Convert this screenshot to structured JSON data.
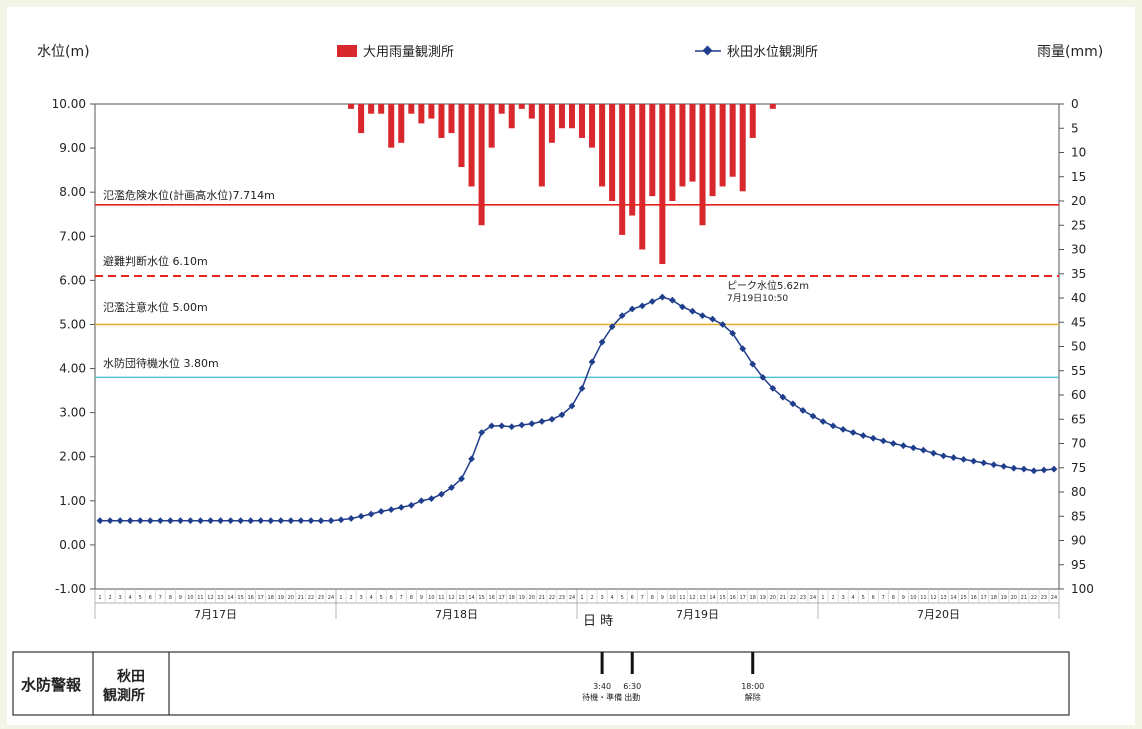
{
  "chart_data": {
    "type": "bar+line",
    "left_axis_label": "水位(m)",
    "right_axis_label": "雨量(mm)",
    "xlabel": "日 時",
    "left_ticks": [
      "10.00",
      "9.00",
      "8.00",
      "7.00",
      "6.00",
      "5.00",
      "4.00",
      "3.00",
      "2.00",
      "1.00",
      "0.00",
      "-1.00"
    ],
    "right_ticks": [
      "0",
      "5",
      "10",
      "15",
      "20",
      "25",
      "30",
      "35",
      "40",
      "45",
      "50",
      "55",
      "60",
      "65",
      "70",
      "75",
      "80",
      "85",
      "90",
      "95",
      "100"
    ],
    "ylim_left": [
      -1,
      10
    ],
    "ylim_right": [
      0,
      100
    ],
    "right_axis_inverted": true,
    "day_labels": [
      "7月17日",
      "7月18日",
      "7月19日",
      "7月20日"
    ],
    "hour_ticks": [
      "1",
      "2",
      "3",
      "4",
      "5",
      "6",
      "7",
      "8",
      "9",
      "10",
      "11",
      "12",
      "13",
      "14",
      "15",
      "16",
      "17",
      "18",
      "19",
      "20",
      "21",
      "22",
      "23",
      "24"
    ],
    "legend": {
      "rain": {
        "label": "大用雨量観測所",
        "color": "#d9272e"
      },
      "level": {
        "label": "秋田水位観測所",
        "color": "#1f3e8c"
      }
    },
    "thresholds": [
      {
        "label": "氾濫危険水位(計画高水位)7.714m",
        "value": 7.714,
        "color": "#e8231f",
        "style": "solid"
      },
      {
        "label": "避難判断水位 6.10m",
        "value": 6.1,
        "color": "#e8231f",
        "style": "dashed"
      },
      {
        "label": "氾濫注意水位 5.00m",
        "value": 5.0,
        "color": "#e8b030",
        "style": "solid"
      },
      {
        "label": "水防団待機水位 3.80m",
        "value": 3.8,
        "color": "#53c3d6",
        "style": "solid"
      }
    ],
    "peak_annotation": {
      "line1": "ピーク水位5.62m",
      "line2": "7月19日10:50"
    },
    "rain_series": {
      "name": "大用雨量観測所",
      "start_hour_index": 25,
      "values": [
        1,
        6,
        2,
        2,
        9,
        8,
        2,
        4,
        3,
        7,
        6,
        13,
        17,
        25,
        9,
        2,
        5,
        1,
        3,
        17,
        8,
        5,
        5,
        7,
        9,
        17,
        20,
        27,
        23,
        30,
        19,
        33,
        20,
        17,
        16,
        25,
        19,
        17,
        15,
        18,
        7,
        0,
        1
      ]
    },
    "level_series": {
      "name": "秋田水位観測所",
      "values": [
        0.55,
        0.55,
        0.55,
        0.55,
        0.55,
        0.55,
        0.55,
        0.55,
        0.55,
        0.55,
        0.55,
        0.55,
        0.55,
        0.55,
        0.55,
        0.55,
        0.55,
        0.55,
        0.55,
        0.55,
        0.55,
        0.55,
        0.55,
        0.55,
        0.57,
        0.6,
        0.65,
        0.7,
        0.76,
        0.8,
        0.85,
        0.9,
        1.0,
        1.05,
        1.15,
        1.3,
        1.5,
        1.95,
        2.55,
        2.7,
        2.7,
        2.68,
        2.72,
        2.75,
        2.8,
        2.85,
        2.95,
        3.15,
        3.55,
        4.15,
        4.6,
        4.95,
        5.2,
        5.35,
        5.42,
        5.52,
        5.62,
        5.55,
        5.4,
        5.3,
        5.2,
        5.12,
        5.0,
        4.8,
        4.45,
        4.1,
        3.8,
        3.55,
        3.35,
        3.2,
        3.05,
        2.92,
        2.8,
        2.7,
        2.62,
        2.55,
        2.48,
        2.42,
        2.36,
        2.3,
        2.25,
        2.2,
        2.15,
        2.08,
        2.02,
        1.98,
        1.94,
        1.9,
        1.86,
        1.82,
        1.78,
        1.74,
        1.72,
        1.68,
        1.7,
        1.72
      ]
    }
  },
  "warning_table": {
    "label": "水防警報",
    "station": "秋田観測所",
    "station_line1": "秋田",
    "station_line2": "観測所",
    "events": [
      {
        "time": "3:40",
        "label": "待機・準備",
        "hour_index": 50
      },
      {
        "time": "6:30",
        "label": "出動",
        "hour_index": 53
      },
      {
        "time": "18:00",
        "label": "解除",
        "hour_index": 65
      }
    ]
  }
}
